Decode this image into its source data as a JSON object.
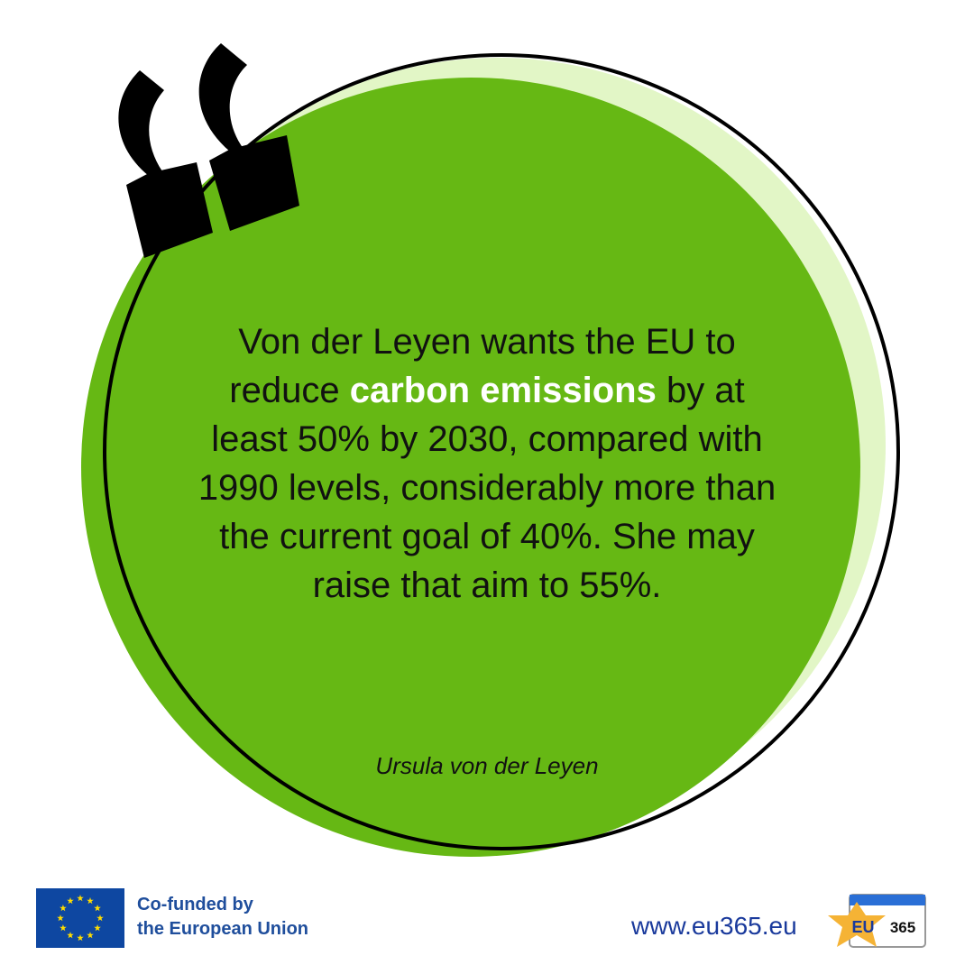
{
  "quote": {
    "lines": [
      [
        "Von der Leyen wants the EU to"
      ],
      [
        "reduce",
        "carbon emissions",
        "by at"
      ],
      [
        "least 50% by 2030, compared with"
      ],
      [
        "1990 levels, considerably more than"
      ],
      [
        "the current goal of 40%. She may"
      ],
      [
        "raise that aim to 55%."
      ]
    ],
    "author": "Ursula von der Leyen"
  },
  "footer": {
    "funding_line1": "Co-funded by",
    "funding_line2": "the European Union",
    "website": "www.eu365.eu",
    "logo_left": "EU",
    "logo_right": "365"
  }
}
